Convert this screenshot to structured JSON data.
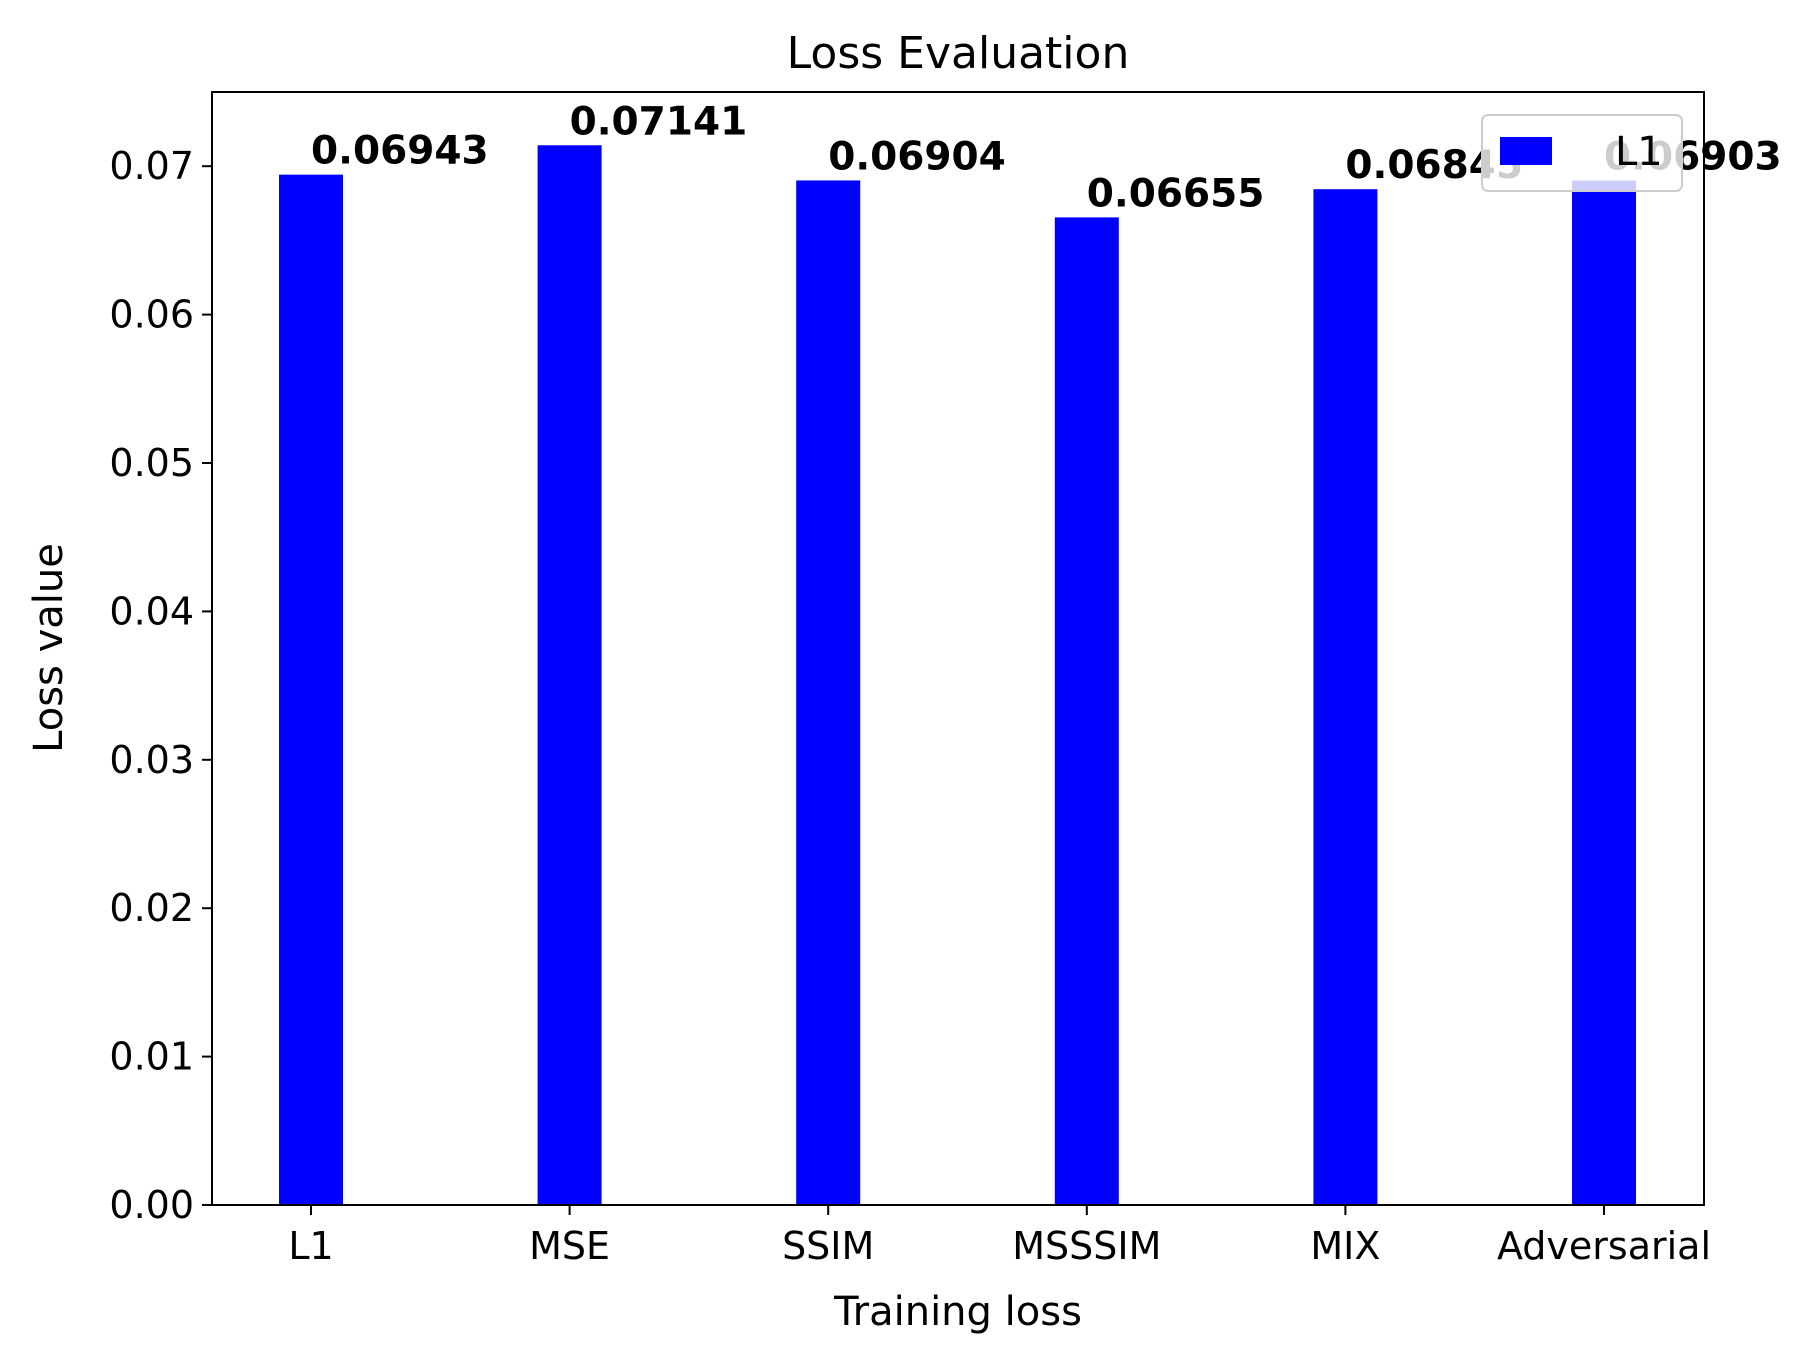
{
  "chart_data": {
    "type": "bar",
    "title": "Loss Evaluation",
    "xlabel": "Training loss",
    "ylabel": "Loss value",
    "categories": [
      "L1",
      "MSE",
      "SSIM",
      "MSSSIM",
      "MIX",
      "Adversarial"
    ],
    "series": [
      {
        "name": "L1",
        "values": [
          0.06943,
          0.07141,
          0.06904,
          0.06655,
          0.06845,
          0.06903
        ]
      }
    ],
    "data_labels": [
      "0.06943",
      "0.07141",
      "0.06904",
      "0.06655",
      "0.06845",
      "0.06903"
    ],
    "ylim": [
      0,
      0.075
    ],
    "yticks": [
      "0.00",
      "0.01",
      "0.02",
      "0.03",
      "0.04",
      "0.05",
      "0.06",
      "0.07"
    ],
    "grid": false,
    "legend": "top-right",
    "bar_color": "#0000ff"
  }
}
